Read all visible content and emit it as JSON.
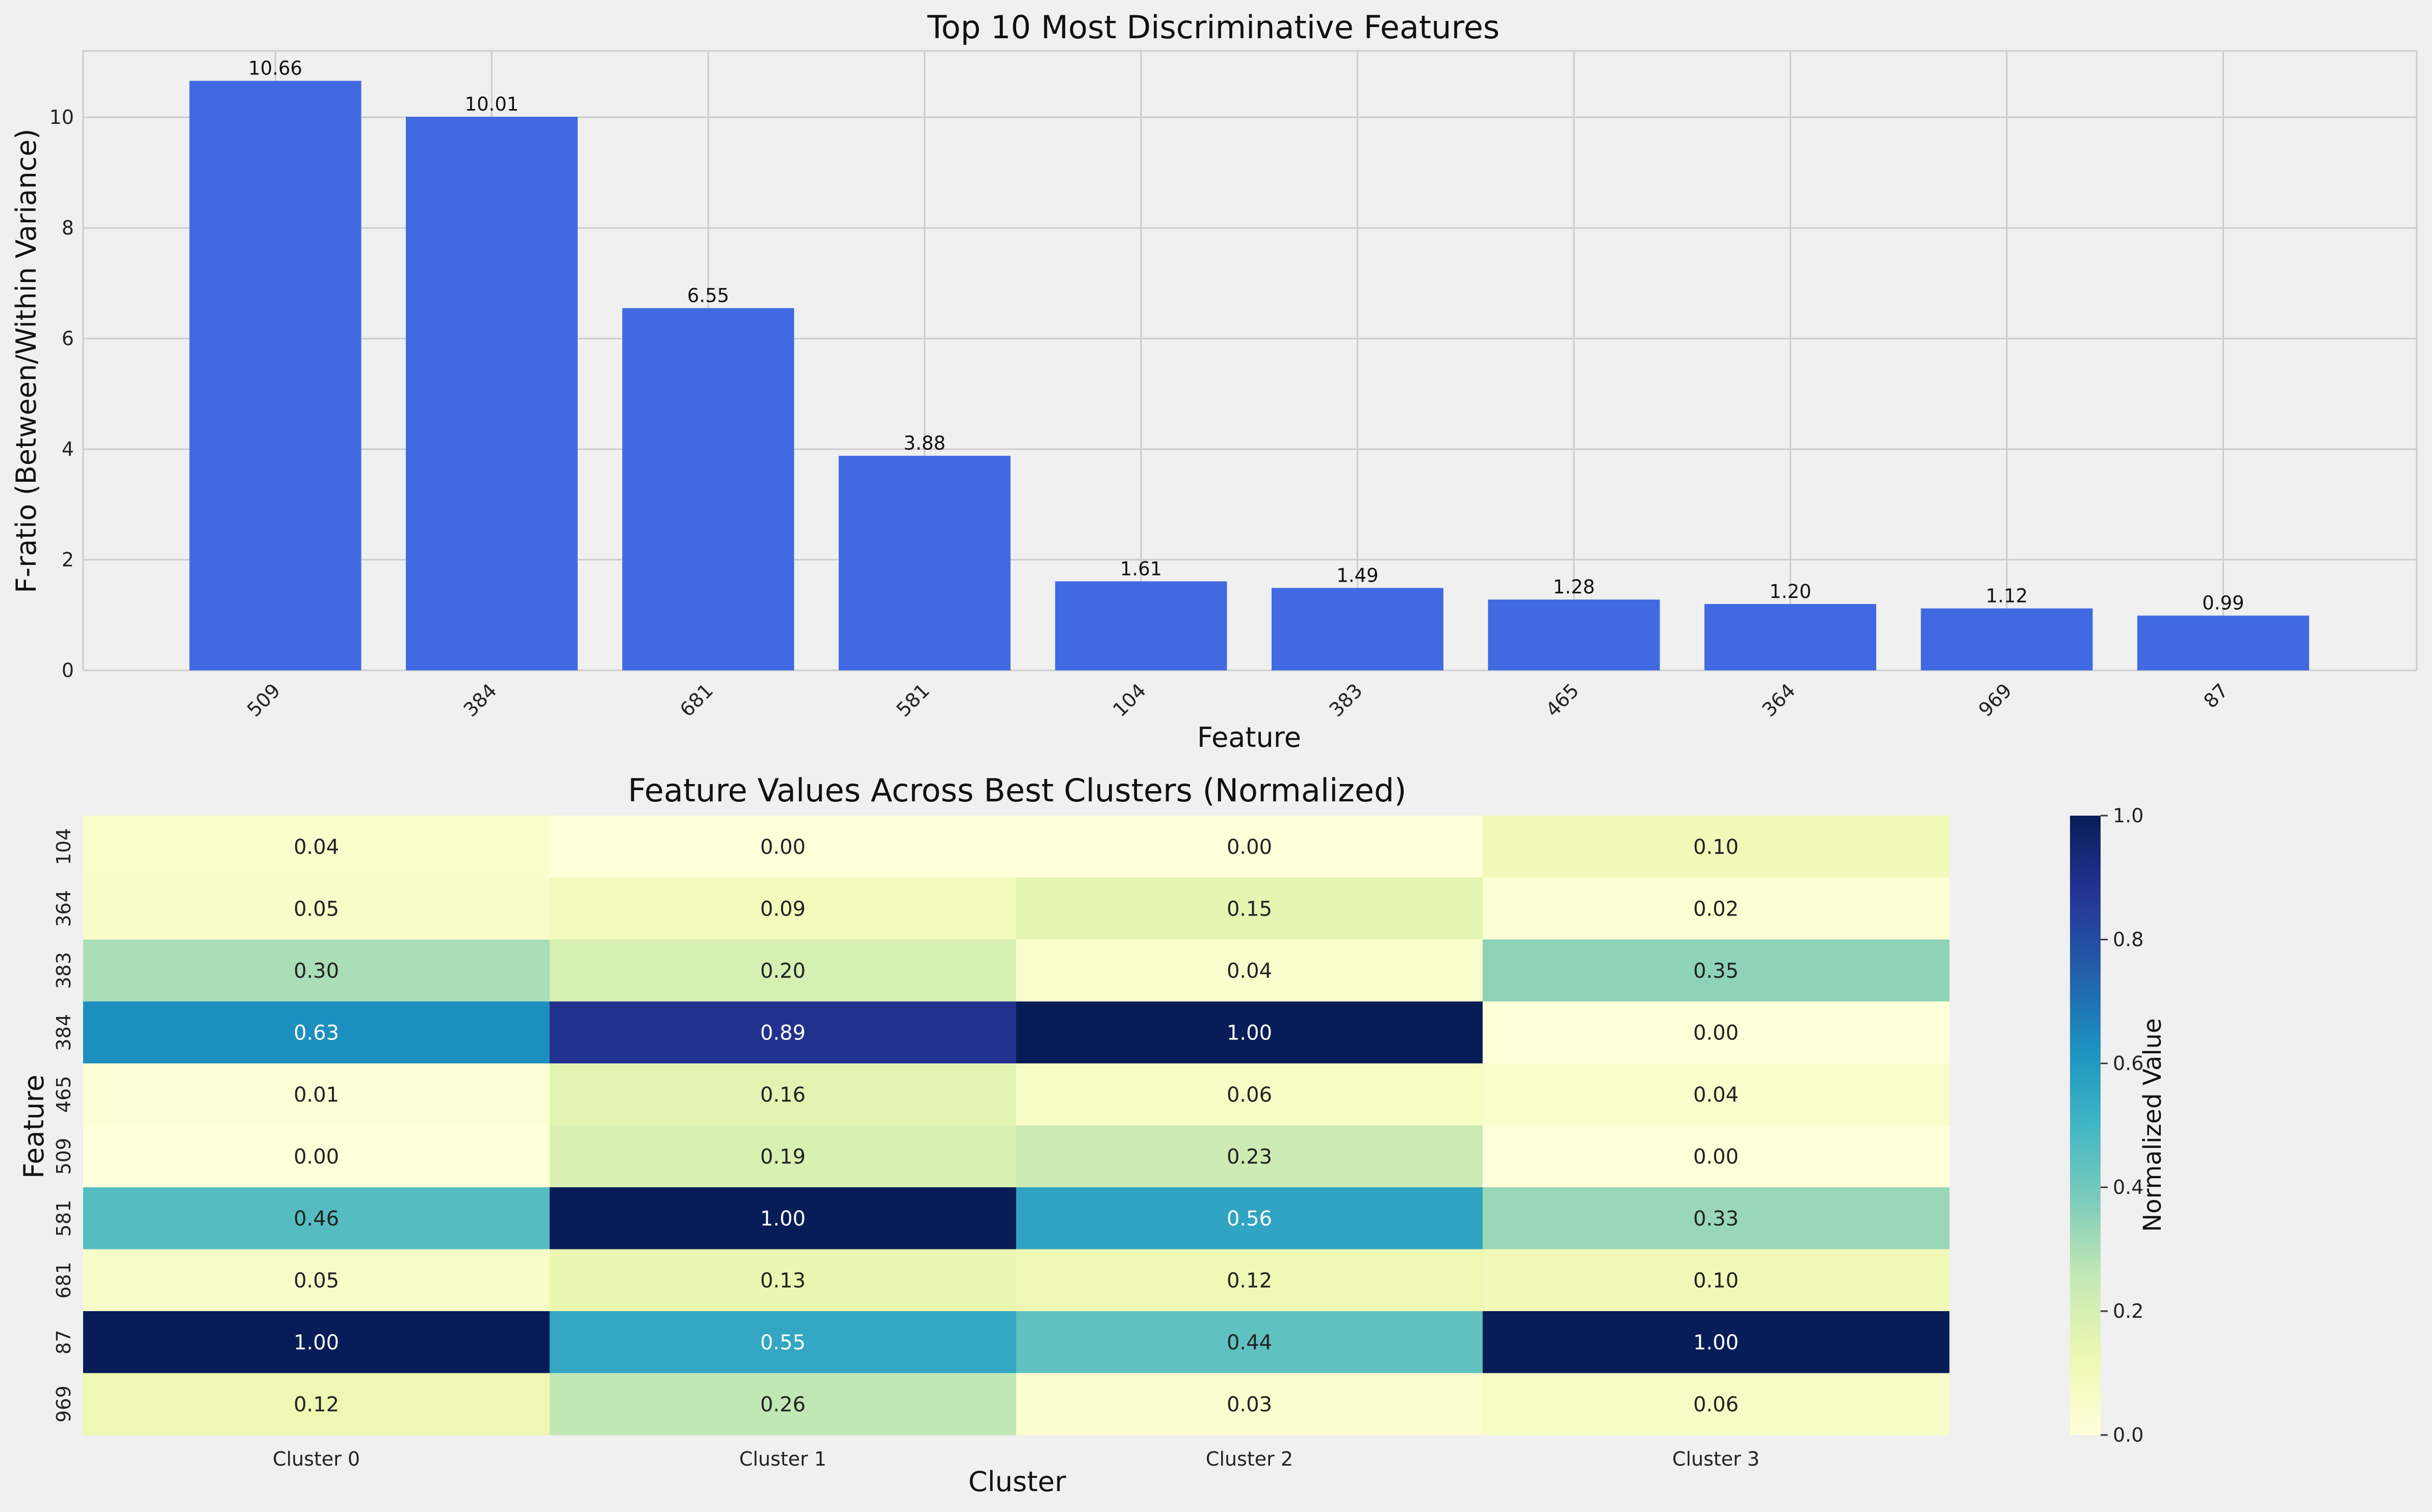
{
  "chart_data": [
    {
      "type": "bar",
      "title": "Top 10 Most Discriminative Features",
      "xlabel": "Feature",
      "ylabel": "F-ratio (Between/Within Variance)",
      "categories": [
        "509",
        "384",
        "681",
        "581",
        "104",
        "383",
        "465",
        "364",
        "969",
        "87"
      ],
      "values": [
        10.66,
        10.01,
        6.55,
        3.88,
        1.61,
        1.49,
        1.28,
        1.2,
        1.12,
        0.99
      ],
      "value_labels": [
        "10.66",
        "10.01",
        "6.55",
        "3.88",
        "1.61",
        "1.49",
        "1.28",
        "1.20",
        "1.12",
        "0.99"
      ],
      "ylim": [
        0,
        11.2
      ],
      "yticks": [
        0,
        2,
        4,
        6,
        8,
        10
      ],
      "ytick_labels": [
        "0",
        "2",
        "4",
        "6",
        "8",
        "10"
      ],
      "grid": true,
      "color": "#4169e1"
    },
    {
      "type": "heatmap",
      "title": "Feature Values Across Best Clusters (Normalized)",
      "xlabel": "Cluster",
      "ylabel": "Feature",
      "columns": [
        "Cluster 0",
        "Cluster 1",
        "Cluster 2",
        "Cluster 3"
      ],
      "rows": [
        "104",
        "364",
        "383",
        "384",
        "465",
        "509",
        "581",
        "681",
        "87",
        "969"
      ],
      "values": [
        [
          0.04,
          0.0,
          0.0,
          0.1
        ],
        [
          0.05,
          0.09,
          0.15,
          0.02
        ],
        [
          0.3,
          0.2,
          0.04,
          0.35
        ],
        [
          0.63,
          0.89,
          1.0,
          0.0
        ],
        [
          0.01,
          0.16,
          0.06,
          0.04
        ],
        [
          0.0,
          0.19,
          0.23,
          0.0
        ],
        [
          0.46,
          1.0,
          0.56,
          0.33
        ],
        [
          0.05,
          0.13,
          0.12,
          0.1
        ],
        [
          1.0,
          0.55,
          0.44,
          1.0
        ],
        [
          0.12,
          0.26,
          0.03,
          0.06
        ]
      ],
      "value_labels": [
        [
          "0.04",
          "0.00",
          "0.00",
          "0.10"
        ],
        [
          "0.05",
          "0.09",
          "0.15",
          "0.02"
        ],
        [
          "0.30",
          "0.20",
          "0.04",
          "0.35"
        ],
        [
          "0.63",
          "0.89",
          "1.00",
          "0.00"
        ],
        [
          "0.01",
          "0.16",
          "0.06",
          "0.04"
        ],
        [
          "0.00",
          "0.19",
          "0.23",
          "0.00"
        ],
        [
          "0.46",
          "1.00",
          "0.56",
          "0.33"
        ],
        [
          "0.05",
          "0.13",
          "0.12",
          "0.10"
        ],
        [
          "1.00",
          "0.55",
          "0.44",
          "1.00"
        ],
        [
          "0.12",
          "0.26",
          "0.03",
          "0.06"
        ]
      ],
      "colormap": "YlGnBu",
      "colorbar_label": "Normalized Value",
      "colorbar_range": [
        0,
        1
      ],
      "colorbar_ticks": [
        "0.0",
        "0.2",
        "0.4",
        "0.6",
        "0.8",
        "1.0"
      ]
    }
  ]
}
